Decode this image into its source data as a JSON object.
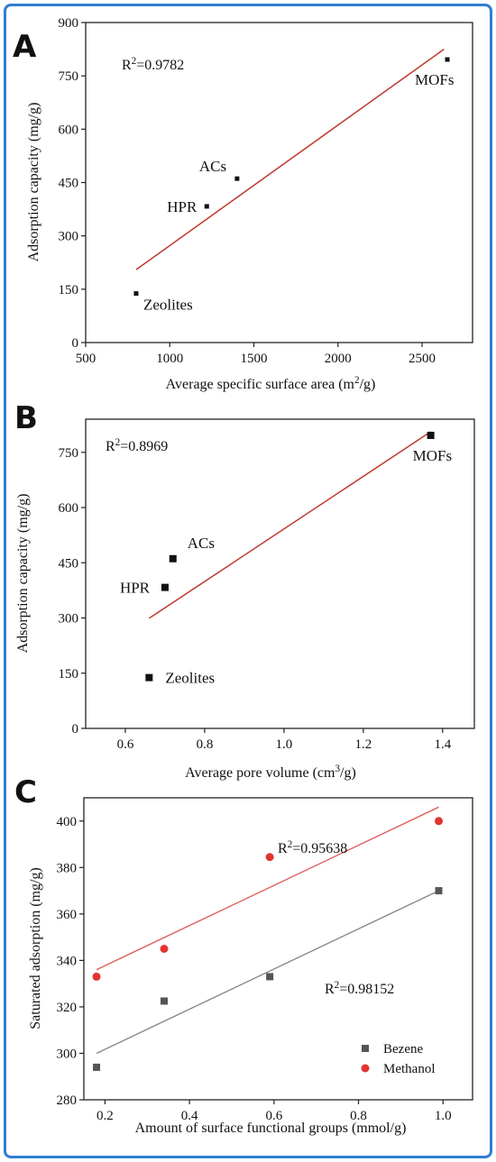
{
  "chart_data": [
    {
      "panel": "A",
      "type": "scatter",
      "xlabel": "Average specific surface area (m²/g)",
      "ylabel": "Adsorption capacity (mg/g)",
      "xlim": [
        500,
        2800
      ],
      "ylim": [
        0,
        900
      ],
      "xticks": [
        500,
        1000,
        1500,
        2000,
        2500
      ],
      "yticks": [
        0,
        150,
        300,
        450,
        600,
        750,
        900
      ],
      "points": [
        {
          "label": "Zeolites",
          "x": 800,
          "y": 138
        },
        {
          "label": "HPR",
          "x": 1220,
          "y": 383
        },
        {
          "label": "ACs",
          "x": 1400,
          "y": 461
        },
        {
          "label": "MOFs",
          "x": 2650,
          "y": 796
        }
      ],
      "fit": {
        "x": [
          800,
          2630
        ],
        "y": [
          205,
          825
        ],
        "color": "#c0392b"
      },
      "annotation": "R²=0.9782",
      "marker_color": "#111111"
    },
    {
      "panel": "B",
      "type": "scatter",
      "xlabel": "Average pore volume (cm³/g)",
      "ylabel": "Adsorption capacity (mg/g)",
      "xlim": [
        0.5,
        1.48
      ],
      "ylim": [
        0,
        840
      ],
      "xticks": [
        0.6,
        0.8,
        1.0,
        1.2,
        1.4
      ],
      "yticks": [
        0,
        150,
        300,
        450,
        600,
        750
      ],
      "points": [
        {
          "label": "Zeolites",
          "x": 0.66,
          "y": 138
        },
        {
          "label": "HPR",
          "x": 0.7,
          "y": 383
        },
        {
          "label": "ACs",
          "x": 0.72,
          "y": 461
        },
        {
          "label": "MOFs",
          "x": 1.37,
          "y": 796
        }
      ],
      "fit": {
        "x": [
          0.66,
          1.37
        ],
        "y": [
          299,
          806
        ],
        "color": "#c0392b"
      },
      "annotation": "R²=0.8969",
      "marker_color": "#111111"
    },
    {
      "panel": "C",
      "type": "scatter",
      "xlabel": "Amount of surface functional groups (mmol/g)",
      "ylabel": "Saturated adsorption (mg/g)",
      "xlim": [
        0.15,
        1.07
      ],
      "ylim": [
        280,
        410
      ],
      "xticks": [
        0.2,
        0.4,
        0.6,
        0.8,
        1.0
      ],
      "yticks": [
        280,
        300,
        320,
        340,
        360,
        380,
        400
      ],
      "series": [
        {
          "name": "Bezene",
          "color": "#555555",
          "marker": "square",
          "x": [
            0.18,
            0.34,
            0.59,
            0.99
          ],
          "y": [
            294,
            322.5,
            333,
            370
          ],
          "fit": {
            "x": [
              0.18,
              0.99
            ],
            "y": [
              300,
              370
            ]
          },
          "fit_color": "#888888",
          "annotation": "R²=0.98152"
        },
        {
          "name": "Methanol",
          "color": "#e3342f",
          "marker": "circle",
          "x": [
            0.18,
            0.34,
            0.59,
            0.99
          ],
          "y": [
            333,
            345,
            384.5,
            400
          ],
          "fit": {
            "x": [
              0.18,
              0.99
            ],
            "y": [
              336,
              406
            ]
          },
          "fit_color": "#e06060",
          "annotation": "R²=0.95638"
        }
      ],
      "legend": "bottom-right"
    }
  ],
  "panel_letters": [
    "A",
    "B",
    "C"
  ]
}
